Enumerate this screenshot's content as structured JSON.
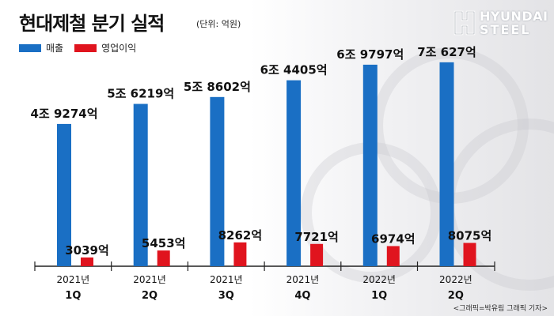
{
  "header": {
    "title": "현대제철 분기 실적",
    "unit": "(단위: 억원)"
  },
  "logo": {
    "line1": "HYUNDAI",
    "line2": "STEEL"
  },
  "legend": [
    {
      "label": "매출",
      "color": "#1a6fc4"
    },
    {
      "label": "영업이익",
      "color": "#e0141e"
    }
  ],
  "credit": "<그래픽=박유림 그래픽 기자>",
  "chart_data": {
    "type": "bar",
    "title": "현대제철 분기 실적",
    "unit": "억원",
    "categories": [
      "2021년 1Q",
      "2021년 2Q",
      "2021년 3Q",
      "2021년 4Q",
      "2022년 1Q",
      "2022년 2Q"
    ],
    "category_lines": [
      [
        "2021년",
        "1Q"
      ],
      [
        "2021년",
        "2Q"
      ],
      [
        "2021년",
        "3Q"
      ],
      [
        "2021년",
        "4Q"
      ],
      [
        "2022년",
        "1Q"
      ],
      [
        "2022년",
        "2Q"
      ]
    ],
    "series": [
      {
        "name": "매출",
        "color": "#1a6fc4",
        "values": [
          49274,
          56219,
          58602,
          64405,
          69797,
          70627
        ],
        "labels": [
          "4조 9274억",
          "5조 6219억",
          "5조 8602억",
          "6조 4405억",
          "6조 9797억",
          "7조 627억"
        ]
      },
      {
        "name": "영업이익",
        "color": "#e0141e",
        "values": [
          3039,
          5453,
          8262,
          7721,
          6974,
          8075
        ],
        "labels": [
          "3039억",
          "5453억",
          "8262억",
          "7721억",
          "6974억",
          "8075억"
        ]
      }
    ],
    "grid": false,
    "legend_position": "top-left"
  }
}
